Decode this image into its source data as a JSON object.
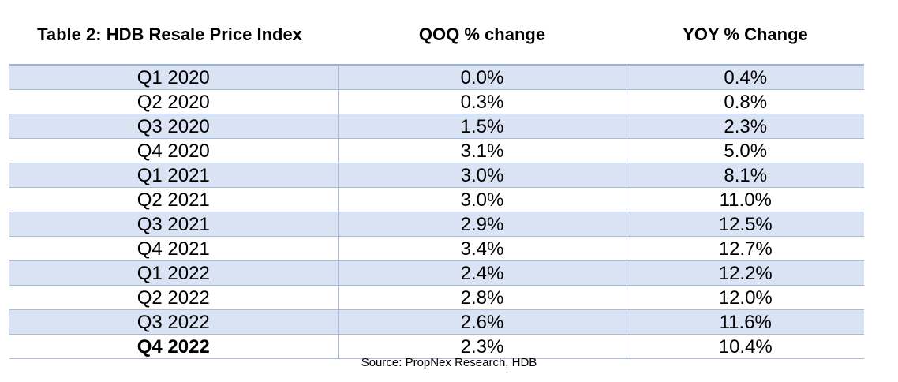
{
  "table": {
    "headers": [
      "Table 2: HDB Resale Price Index",
      "QOQ % change",
      "YOY % Change"
    ],
    "rows": [
      {
        "period": "Q1 2020",
        "qoq": "0.0%",
        "yoy": "0.4%"
      },
      {
        "period": "Q2 2020",
        "qoq": "0.3%",
        "yoy": "0.8%"
      },
      {
        "period": "Q3 2020",
        "qoq": "1.5%",
        "yoy": "2.3%"
      },
      {
        "period": "Q4 2020",
        "qoq": "3.1%",
        "yoy": "5.0%"
      },
      {
        "period": "Q1 2021",
        "qoq": "3.0%",
        "yoy": "8.1%"
      },
      {
        "period": "Q2 2021",
        "qoq": "3.0%",
        "yoy": "11.0%"
      },
      {
        "period": "Q3 2021",
        "qoq": "2.9%",
        "yoy": "12.5%"
      },
      {
        "period": "Q4 2021",
        "qoq": "3.4%",
        "yoy": "12.7%"
      },
      {
        "period": "Q1 2022",
        "qoq": "2.4%",
        "yoy": "12.2%"
      },
      {
        "period": "Q2 2022",
        "qoq": "2.8%",
        "yoy": "12.0%"
      },
      {
        "period": "Q3 2022",
        "qoq": "2.6%",
        "yoy": "11.6%"
      },
      {
        "period": "Q4 2022",
        "qoq": "2.3%",
        "yoy": "10.4%"
      }
    ]
  },
  "source": "Source: PropNex Research, HDB",
  "colors": {
    "row_stripe": "#dae3f3",
    "border": "#a8bbdc"
  }
}
